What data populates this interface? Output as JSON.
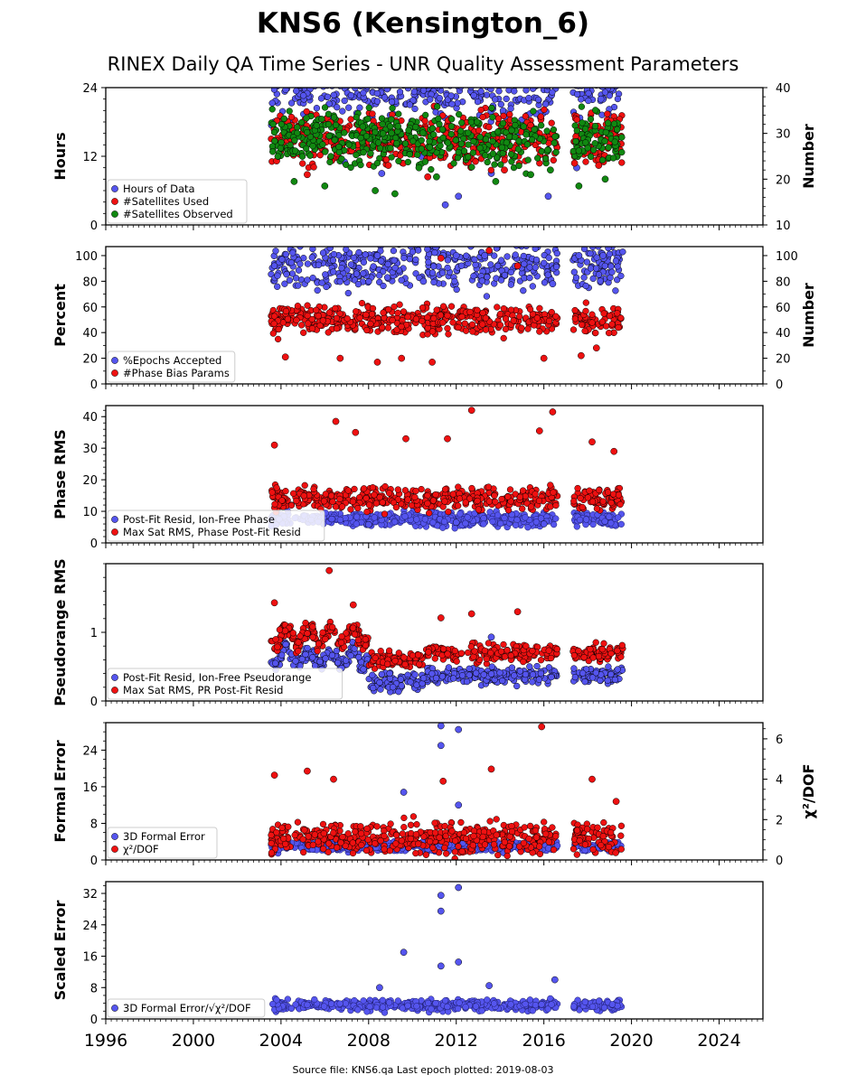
{
  "chart_data": {
    "type": "scatter",
    "title": "KNS6 (Kensington_6)",
    "subtitle": "RINEX Daily QA Time Series - UNR Quality Assessment Parameters",
    "footer": "Source file: KNS6.qa Last epoch plotted: 2019-08-03",
    "x_axis": {
      "type": "date",
      "range": [
        "1996-01-01",
        "2026-01-01"
      ],
      "ticks": [
        "1996",
        "2000",
        "2004",
        "2008",
        "2012",
        "2016",
        "2020",
        "2024"
      ]
    },
    "data_gap": [
      "2016-08-15",
      "2017-05-01"
    ],
    "colors": {
      "blue": "#5555ee",
      "red": "#ee1111",
      "green": "#118811",
      "navy": "#1a1a66"
    },
    "panels": [
      {
        "ylabel": "Hours",
        "ylim": [
          0,
          24
        ],
        "yticks": [
          "0",
          "12",
          "24"
        ],
        "ylabel_right": "Number",
        "ylim_right": [
          10,
          40
        ],
        "yticks_right": [
          "10",
          "20",
          "30",
          "40"
        ],
        "legend": [
          "Hours of Data",
          "#Satellites Used",
          "#Satellites Observed"
        ],
        "series": [
          {
            "name": "Hours of Data",
            "color": "blue",
            "axis": "left",
            "typical": 23.8,
            "points": [
              [
                2003.7,
                18.0
              ],
              [
                2004.3,
                12.5
              ],
              [
                2005.1,
                16.0
              ],
              [
                2006.9,
                11.0
              ],
              [
                2008.6,
                9.0
              ],
              [
                2010.4,
                12.0
              ],
              [
                2011.5,
                3.5
              ],
              [
                2012.1,
                5.0
              ],
              [
                2013.6,
                9.0
              ],
              [
                2014.8,
                16.0
              ],
              [
                2016.2,
                5.0
              ],
              [
                2017.5,
                10.0
              ],
              [
                2018.6,
                22.0
              ],
              [
                2019.3,
                18.0
              ]
            ]
          },
          {
            "name": "#Satellites Used",
            "color": "red",
            "axis": "right",
            "typical": 28.7,
            "points": [
              [
                2003.8,
                24.0
              ],
              [
                2005.2,
                21.0
              ],
              [
                2007.5,
                27.5
              ],
              [
                2008.9,
                23.0
              ],
              [
                2010.7,
                20.5
              ],
              [
                2012.6,
                25.0
              ],
              [
                2014.2,
                22.0
              ],
              [
                2016.4,
                30.0
              ],
              [
                2017.4,
                23.5
              ],
              [
                2018.5,
                23.0
              ]
            ]
          },
          {
            "name": "#Satellites Observed",
            "color": "green",
            "axis": "right",
            "typical": 28.8,
            "points": [
              [
                2004.6,
                19.5
              ],
              [
                2006.0,
                18.5
              ],
              [
                2008.3,
                17.5
              ],
              [
                2009.2,
                16.8
              ],
              [
                2010.3,
                22.5
              ],
              [
                2011.1,
                20.5
              ],
              [
                2013.8,
                19.5
              ],
              [
                2015.4,
                21.0
              ],
              [
                2016.3,
                22.0
              ],
              [
                2017.6,
                18.5
              ],
              [
                2018.8,
                20.0
              ]
            ]
          }
        ]
      },
      {
        "ylabel": "Percent",
        "ylim": [
          0,
          107
        ],
        "yticks": [
          "0",
          "20",
          "40",
          "60",
          "80",
          "100"
        ],
        "ylabel_right": "Number",
        "ylim_right": [
          0,
          107
        ],
        "yticks_right": [
          "0",
          "20",
          "40",
          "60",
          "80",
          "100"
        ],
        "legend": [
          "%Epochs Accepted",
          "#Phase Bias Params"
        ],
        "series": [
          {
            "name": "%Epochs Accepted",
            "color": "blue",
            "axis": "left",
            "typical": 93,
            "points": [
              [
                2008.4,
                100
              ],
              [
                2011.4,
                100
              ],
              [
                2012.0,
                100
              ],
              [
                2013.3,
                100
              ],
              [
                2017.6,
                100
              ],
              [
                2018.7,
                100
              ],
              [
                2010.5,
                80
              ],
              [
                2016.4,
                78
              ]
            ]
          },
          {
            "name": "#Phase Bias Params",
            "color": "red",
            "axis": "right",
            "typical": 50,
            "points": [
              [
                2004.2,
                21
              ],
              [
                2006.7,
                20
              ],
              [
                2008.4,
                17
              ],
              [
                2009.5,
                20
              ],
              [
                2010.9,
                17
              ],
              [
                2013.5,
                104
              ],
              [
                2011.3,
                98
              ],
              [
                2014.8,
                92
              ],
              [
                2016.0,
                20
              ],
              [
                2017.7,
                22
              ],
              [
                2018.4,
                28
              ]
            ]
          }
        ]
      },
      {
        "ylabel": "Phase RMS",
        "ylim": [
          0,
          43.5
        ],
        "yticks": [
          "0",
          "10",
          "20",
          "30",
          "40"
        ],
        "legend": [
          "Post-Fit Resid, Ion-Free Phase",
          "Max Sat RMS, Phase Post-Fit Resid"
        ],
        "series": [
          {
            "name": "Post-Fit Resid, Ion-Free Phase",
            "color": "blue",
            "axis": "left",
            "typical": 7.5,
            "points": [
              [
                2008.0,
                5.8
              ],
              [
                2012.0,
                6.5
              ],
              [
                2016.0,
                6.0
              ]
            ]
          },
          {
            "name": "Max Sat RMS, Phase Post-Fit Resid",
            "color": "red",
            "axis": "left",
            "typical": 14,
            "points": [
              [
                2003.7,
                31
              ],
              [
                2006.5,
                38.5
              ],
              [
                2007.4,
                35.0
              ],
              [
                2009.7,
                33.0
              ],
              [
                2011.6,
                33.0
              ],
              [
                2012.7,
                42.0
              ],
              [
                2015.8,
                35.5
              ],
              [
                2016.4,
                41.5
              ],
              [
                2018.2,
                32.0
              ],
              [
                2019.2,
                29.0
              ]
            ]
          }
        ]
      },
      {
        "ylabel": "Pseudorange RMS",
        "ylim": [
          0,
          2
        ],
        "yticks": [
          "0",
          "1"
        ],
        "legend": [
          "Post-Fit Resid, Ion-Free Pseudorange",
          "Max Sat RMS, PR Post-Fit Resid"
        ],
        "series": [
          {
            "name": "Post-Fit Resid, Ion-Free Pseudorange",
            "color": "blue",
            "axis": "left",
            "typical": 0.5,
            "points": [
              [
                2013.6,
                0.93
              ]
            ]
          },
          {
            "name": "Max Sat RMS, PR Post-Fit Resid",
            "color": "red",
            "axis": "left",
            "typical": 0.7,
            "points": [
              [
                2003.7,
                1.43
              ],
              [
                2006.2,
                1.9
              ],
              [
                2007.3,
                1.4
              ],
              [
                2011.3,
                1.21
              ],
              [
                2012.7,
                1.27
              ],
              [
                2014.8,
                1.3
              ]
            ]
          }
        ]
      },
      {
        "ylabel": "Formal Error",
        "ylim": [
          0,
          30
        ],
        "yticks": [
          "0",
          "8",
          "16",
          "24"
        ],
        "ylabel_right": "χ²/DOF",
        "ylim_right": [
          0,
          6.8
        ],
        "yticks_right": [
          "0",
          "2",
          "4",
          "6"
        ],
        "legend": [
          "3D Formal Error",
          "χ²/DOF"
        ],
        "series": [
          {
            "name": "3D Formal Error",
            "color": "blue",
            "axis": "left",
            "typical": 3.0,
            "points": [
              [
                2009.6,
                14.8
              ],
              [
                2011.3,
                29.3
              ],
              [
                2011.3,
                25.0
              ],
              [
                2012.1,
                28.5
              ],
              [
                2012.1,
                12.0
              ]
            ]
          },
          {
            "name": "χ²/DOF",
            "color": "red",
            "axis": "right",
            "typical": 1.1,
            "points": [
              [
                2003.7,
                4.2
              ],
              [
                2005.2,
                4.4
              ],
              [
                2006.4,
                4.0
              ],
              [
                2011.4,
                3.9
              ],
              [
                2013.6,
                4.5
              ],
              [
                2015.9,
                6.6
              ],
              [
                2018.2,
                4.0
              ],
              [
                2019.3,
                2.9
              ]
            ]
          }
        ]
      },
      {
        "ylabel": "Scaled Error",
        "ylim": [
          0,
          35
        ],
        "yticks": [
          "0",
          "8",
          "16",
          "24",
          "32"
        ],
        "legend": [
          "3D Formal Error/√χ²/DOF"
        ],
        "series": [
          {
            "name": "3D Formal Error/√χ²/DOF",
            "color": "blue",
            "axis": "left",
            "typical": 3.5,
            "points": [
              [
                2009.6,
                17.0
              ],
              [
                2011.3,
                31.5
              ],
              [
                2011.3,
                27.5
              ],
              [
                2012.1,
                33.5
              ],
              [
                2011.3,
                13.5
              ],
              [
                2012.1,
                14.5
              ],
              [
                2016.5,
                10.0
              ],
              [
                2013.5,
                8.5
              ],
              [
                2008.5,
                8.0
              ]
            ]
          }
        ]
      }
    ]
  }
}
